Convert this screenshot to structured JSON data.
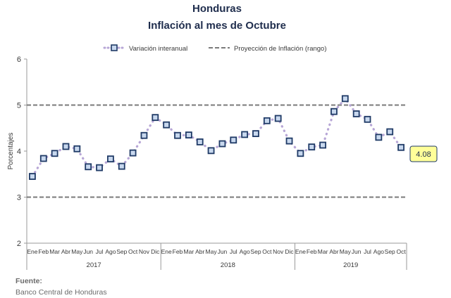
{
  "title": "Honduras",
  "subtitle": "Inflación al mes de Octubre",
  "legend": {
    "series_label": "Variación interanual",
    "range_label": "Proyección de Inflación (rango)"
  },
  "source": {
    "label": "Fuente:",
    "value": "Banco Central de Honduras"
  },
  "callout": "4.08",
  "colors": {
    "title": "#1f2d4d",
    "marker_border": "#1f3a66",
    "marker_fill": "#c8d8ee",
    "dotted_line": "#b7a6d6",
    "range_line": "#7a7a7a",
    "callout_fill": "#ffff99"
  },
  "chart_data": {
    "type": "line",
    "title": "Honduras",
    "subtitle": "Inflación al mes de Octubre",
    "ylabel": "Porcentajes",
    "xlabel": "",
    "ylim": [
      2,
      6
    ],
    "yticks": [
      "2",
      "3",
      "4",
      "5",
      "6"
    ],
    "grid": false,
    "legend_position": "top",
    "years": [
      "2017",
      "2018",
      "2019"
    ],
    "categories": [
      "Ene",
      "Feb",
      "Mar",
      "Abr",
      "May",
      "Jun",
      "Jul",
      "Ago",
      "Sep",
      "Oct",
      "Nov",
      "Dic",
      "Ene",
      "Feb",
      "Mar",
      "Abr",
      "May",
      "Jun",
      "Jul",
      "Ago",
      "Sep",
      "Oct",
      "Nov",
      "Dic",
      "Ene",
      "Feb",
      "Mar",
      "Abr",
      "May",
      "Jun",
      "Jul",
      "Ago",
      "Sep",
      "Oct"
    ],
    "series": [
      {
        "name": "Variación interanual",
        "values": [
          3.45,
          3.84,
          3.95,
          4.1,
          4.05,
          3.66,
          3.64,
          3.83,
          3.67,
          3.96,
          4.34,
          4.73,
          4.57,
          4.34,
          4.35,
          4.2,
          4.01,
          4.16,
          4.24,
          4.36,
          4.38,
          4.66,
          4.71,
          4.22,
          3.95,
          4.09,
          4.13,
          4.86,
          5.14,
          4.81,
          4.69,
          4.3,
          4.42,
          4.08
        ]
      }
    ],
    "reference_lines": [
      {
        "name": "Proyección de Inflación (rango)",
        "values": [
          3,
          5
        ]
      }
    ]
  }
}
